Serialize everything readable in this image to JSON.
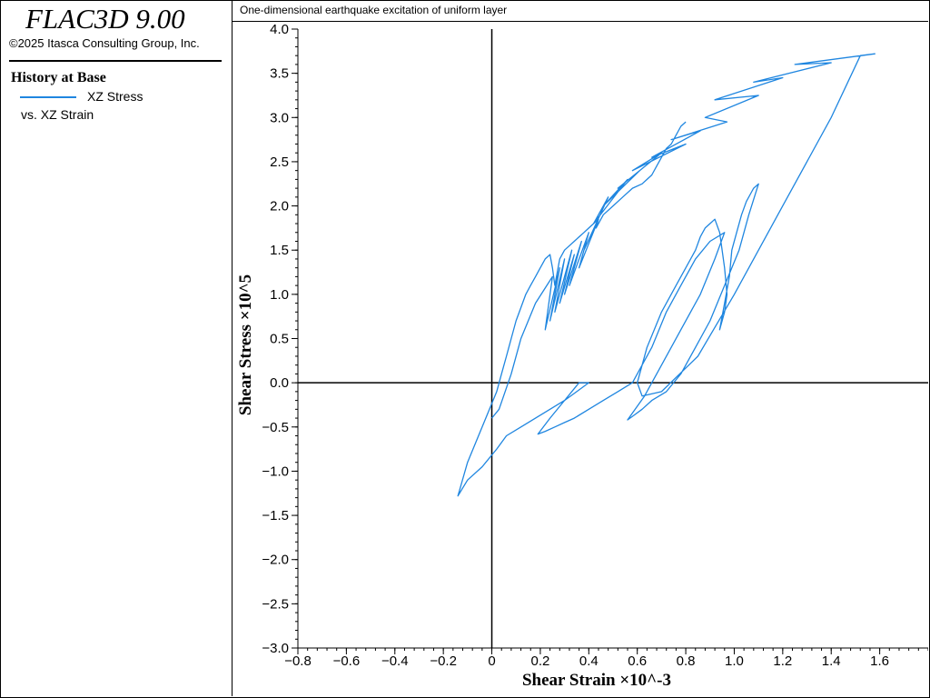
{
  "app": {
    "title": "FLAC3D 9.00",
    "copyright": "©2025 Itasca Consulting Group, Inc."
  },
  "legend": {
    "heading": "History at Base",
    "entries": [
      {
        "name": "XZ Stress",
        "subtitle": "vs. XZ Strain",
        "color": "#1f86e0"
      }
    ]
  },
  "chart_data": {
    "type": "line",
    "title": "One-dimensional earthquake excitation of uniform layer",
    "xlabel": "Shear Strain ×10^-3",
    "ylabel": "Shear Stress ×10^5",
    "xlim": [
      -0.8,
      1.8
    ],
    "ylim": [
      -3.0,
      4.0
    ],
    "x_ticks": [
      -0.8,
      -0.6,
      -0.4,
      -0.2,
      0,
      0.2,
      0.4,
      0.6,
      0.8,
      1.0,
      1.2,
      1.4,
      1.6
    ],
    "x_tick_labels": [
      "−0.8",
      "−0.6",
      "−0.4",
      "−0.2",
      "0",
      "0.2",
      "0.4",
      "0.6",
      "0.8",
      "1.0",
      "1.2",
      "1.4",
      "1.6"
    ],
    "y_ticks": [
      4.0,
      3.5,
      3.0,
      2.5,
      2.0,
      1.5,
      1.0,
      0.5,
      0.0,
      -0.5,
      -1.0,
      -1.5,
      -2.0,
      -2.5,
      -3.0
    ],
    "y_tick_labels": [
      "4.0",
      "3.5",
      "3.0",
      "2.5",
      "2.0",
      "1.5",
      "1.0",
      "0.5",
      "0.0",
      "−0.5",
      "−1.0",
      "−1.5",
      "−2.0",
      "−2.5",
      "−3.0"
    ],
    "zero_lines": true,
    "grid": false,
    "series": [
      {
        "color": "#1f86e0",
        "x": [
          0.0,
          0.03,
          0.08,
          0.12,
          0.18,
          0.25,
          0.22,
          0.28,
          0.24,
          0.3,
          0.26,
          0.33,
          0.28,
          0.34,
          0.3,
          0.37,
          0.32,
          0.4,
          0.36,
          0.44,
          0.38,
          0.48,
          0.42,
          0.56,
          0.46,
          0.61,
          0.52,
          0.7,
          0.58,
          0.8,
          0.66,
          0.86,
          0.74,
          0.97,
          0.88,
          1.1,
          0.92,
          1.2,
          1.08,
          1.4,
          1.25,
          1.58,
          1.52,
          1.4,
          1.2,
          1.0,
          0.85,
          0.7,
          0.62,
          0.6,
          0.64,
          0.7,
          0.76,
          0.8,
          0.84,
          0.86,
          0.88,
          0.9,
          0.92,
          0.94,
          0.95,
          0.96,
          0.97,
          0.96,
          0.94,
          0.96,
          0.98,
          0.99,
          1.01,
          1.03,
          1.05,
          1.07,
          1.08,
          1.1,
          1.06,
          1.02,
          0.96,
          0.9,
          0.84,
          0.78,
          0.72,
          0.66,
          0.62,
          0.58,
          0.56,
          0.63,
          0.7,
          0.78,
          0.86,
          0.92,
          0.96,
          0.9,
          0.84,
          0.78,
          0.72,
          0.66,
          0.62,
          0.58,
          0.52,
          0.46,
          0.4,
          0.34,
          0.3,
          0.26,
          0.22,
          0.19,
          0.24,
          0.3,
          0.36,
          0.4,
          0.35,
          0.3,
          0.24,
          0.18,
          0.12,
          0.06,
          0.02,
          -0.04,
          -0.1,
          -0.14,
          -0.1,
          -0.04,
          0.02,
          0.04,
          0.06,
          0.08,
          0.1,
          0.12,
          0.14,
          0.16,
          0.18,
          0.2,
          0.22,
          0.24,
          0.25,
          0.26,
          0.28,
          0.3,
          0.32,
          0.34,
          0.36,
          0.38,
          0.4,
          0.42,
          0.44,
          0.43,
          0.46,
          0.5,
          0.54,
          0.58,
          0.62,
          0.64,
          0.66,
          0.68,
          0.7,
          0.72,
          0.74,
          0.76,
          0.78,
          0.8
        ],
        "y": [
          -0.4,
          -0.3,
          0.1,
          0.5,
          0.9,
          1.2,
          0.6,
          1.3,
          0.7,
          1.4,
          0.8,
          1.5,
          0.9,
          1.45,
          1.0,
          1.6,
          1.1,
          1.7,
          1.3,
          1.85,
          1.5,
          2.1,
          1.8,
          2.3,
          2.0,
          2.4,
          2.2,
          2.6,
          2.4,
          2.7,
          2.55,
          2.85,
          2.75,
          2.95,
          3.0,
          3.25,
          3.2,
          3.45,
          3.4,
          3.62,
          3.6,
          3.72,
          3.7,
          3.0,
          2.0,
          1.0,
          0.3,
          -0.1,
          -0.15,
          0.0,
          0.4,
          0.8,
          1.1,
          1.3,
          1.5,
          1.65,
          1.75,
          1.8,
          1.85,
          1.7,
          1.5,
          1.3,
          1.0,
          0.8,
          0.6,
          0.9,
          1.2,
          1.5,
          1.7,
          1.9,
          2.05,
          2.15,
          2.2,
          2.25,
          1.9,
          1.5,
          1.1,
          0.7,
          0.4,
          0.1,
          -0.1,
          -0.2,
          -0.3,
          -0.38,
          -0.42,
          -0.15,
          0.2,
          0.6,
          1.0,
          1.4,
          1.7,
          1.6,
          1.4,
          1.1,
          0.8,
          0.4,
          0.2,
          0.0,
          -0.1,
          -0.2,
          -0.3,
          -0.4,
          -0.45,
          -0.5,
          -0.55,
          -0.58,
          -0.4,
          -0.2,
          0.0,
          0.0,
          -0.1,
          -0.2,
          -0.3,
          -0.4,
          -0.5,
          -0.6,
          -0.75,
          -0.95,
          -1.1,
          -1.28,
          -0.9,
          -0.5,
          -0.1,
          0.1,
          0.3,
          0.5,
          0.7,
          0.85,
          1.0,
          1.1,
          1.2,
          1.3,
          1.4,
          1.45,
          1.3,
          1.1,
          1.4,
          1.5,
          1.55,
          1.6,
          1.65,
          1.7,
          1.75,
          1.8,
          1.85,
          1.75,
          1.9,
          2.0,
          2.1,
          2.2,
          2.25,
          2.3,
          2.35,
          2.45,
          2.55,
          2.65,
          2.7,
          2.8,
          2.9,
          2.95
        ]
      }
    ]
  }
}
